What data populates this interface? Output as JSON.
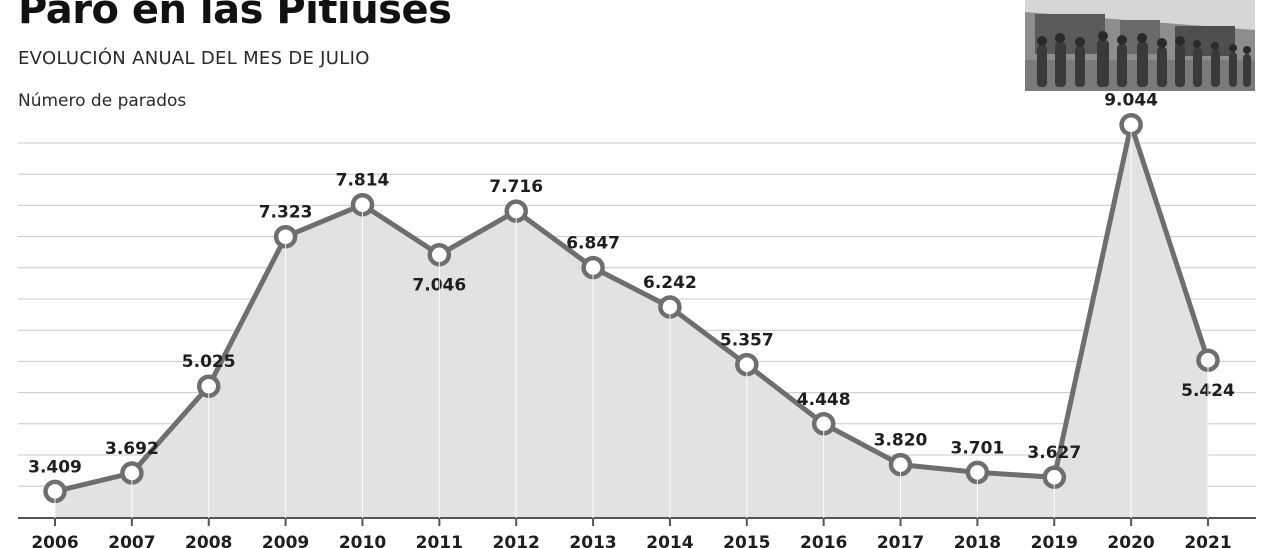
{
  "title": "Paro en las Pitiüses",
  "subtitle": "EVOLUCIÓN ANUAL DEL MES DE JULIO",
  "ylabel": "Número de parados",
  "photo_icon": "queue-of-people-photo",
  "chart_data": {
    "type": "area",
    "x": [
      "2006",
      "2007",
      "2008",
      "2009",
      "2010",
      "2011",
      "2012",
      "2013",
      "2014",
      "2015",
      "2016",
      "2017",
      "2018",
      "2019",
      "2020",
      "2021"
    ],
    "values": [
      3409,
      3692,
      5025,
      7323,
      7814,
      7046,
      7716,
      6847,
      6242,
      5357,
      4448,
      3820,
      3701,
      3627,
      9044,
      5424
    ],
    "labels": [
      "3.409",
      "3.692",
      "5.025",
      "7.323",
      "7.814",
      "7.046",
      "7.716",
      "6.847",
      "6.242",
      "5.357",
      "4.448",
      "3.820",
      "3.701",
      "3.627",
      "9.044",
      "5.424"
    ],
    "title": "Paro en las Pitiüses",
    "subtitle": "EVOLUCIÓN ANUAL DEL MES DE JULIO",
    "xlabel": "",
    "ylabel": "Número de parados",
    "ylim": [
      3000,
      9300
    ],
    "grid": true,
    "line_color": "#6e6e6e",
    "fill_color": "#e2e2e2",
    "grid_color": "#c8c8c8"
  }
}
